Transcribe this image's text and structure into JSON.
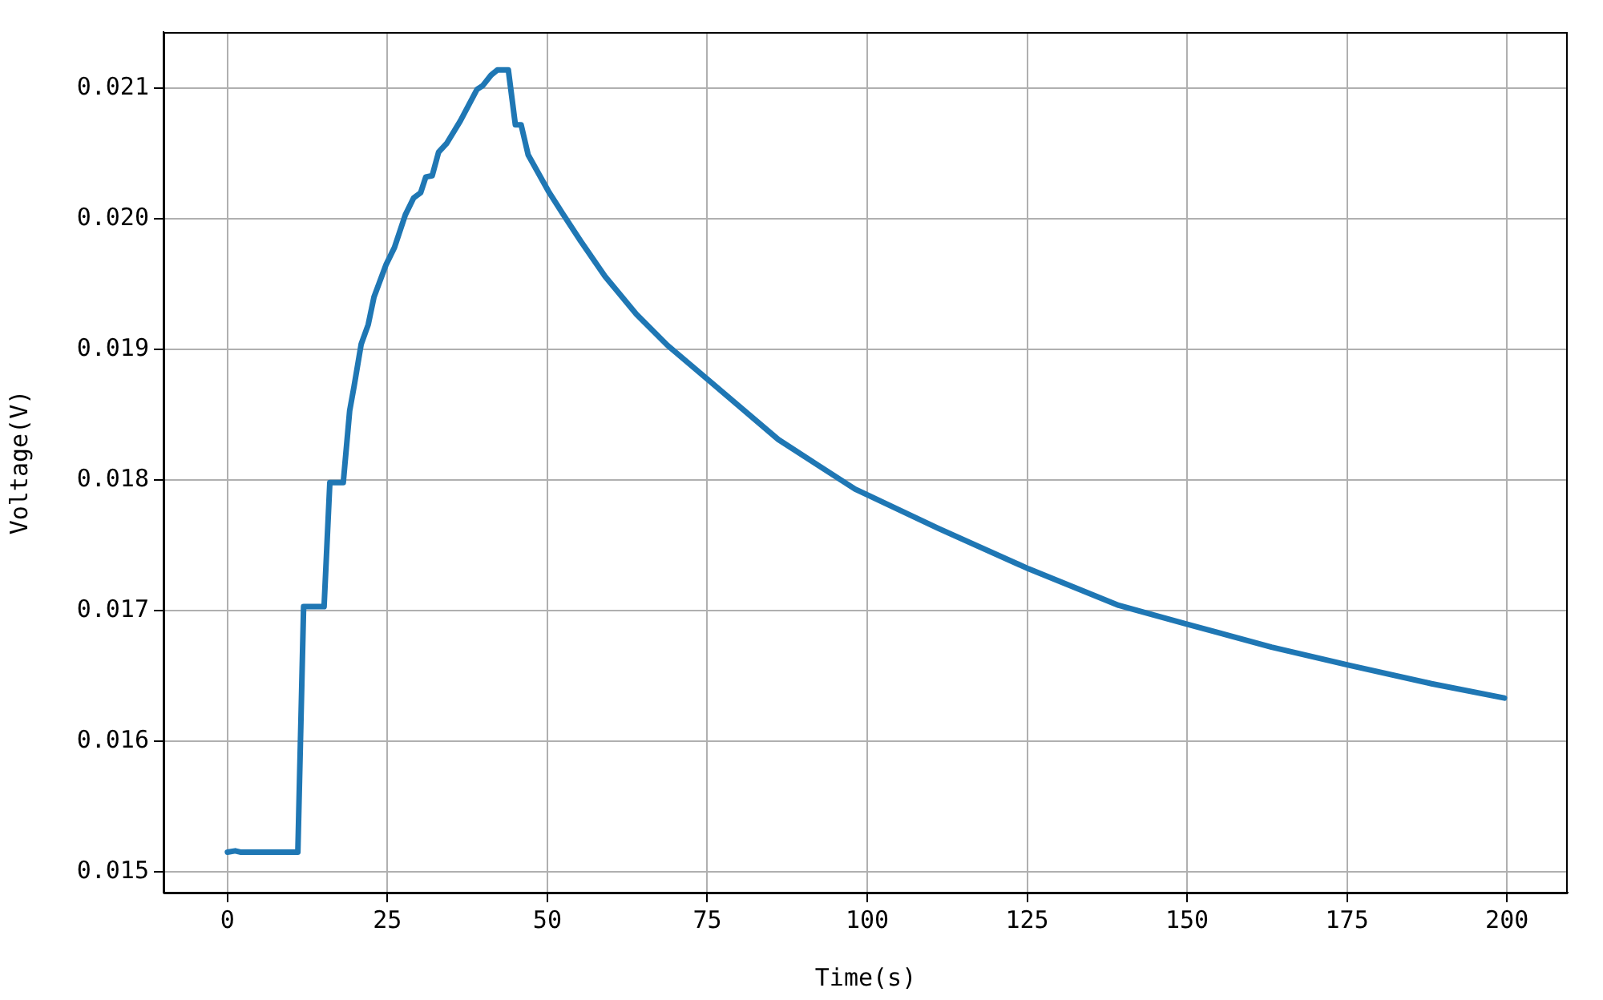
{
  "chart_data": {
    "type": "line",
    "xlabel": "Time(s)",
    "ylabel": "Voltage(V)",
    "x": [
      0,
      1.2,
      2,
      11,
      11.9,
      15.1,
      16,
      18.1,
      19.1,
      19.8,
      20.9,
      22,
      22.9,
      24.8,
      26.1,
      27.8,
      29.1,
      30.2,
      31,
      32,
      33,
      34.3,
      36.4,
      39,
      39.9,
      41.2,
      42.2,
      43.9,
      45,
      45.9,
      47,
      50.3,
      52.4,
      55.2,
      59,
      63.9,
      68.8,
      75.3,
      86.1,
      98.1,
      100.3,
      111.1,
      125.2,
      139.3,
      150.4,
      163.2,
      175.4,
      188.2,
      199.6
    ],
    "series": [
      {
        "color": "#1f77b4",
        "values": [
          0.01515,
          0.01516,
          0.01515,
          0.01515,
          0.01703,
          0.01703,
          0.01798,
          0.01798,
          0.01853,
          0.01872,
          0.01904,
          0.01919,
          0.0194,
          0.01965,
          0.01978,
          0.02003,
          0.02016,
          0.0202,
          0.02032,
          0.02033,
          0.02051,
          0.02058,
          0.02075,
          0.02099,
          0.02102,
          0.0211,
          0.02114,
          0.02114,
          0.02072,
          0.02072,
          0.02049,
          0.0202,
          0.02004,
          0.01983,
          0.01956,
          0.01927,
          0.01903,
          0.01876,
          0.01831,
          0.01793,
          0.01788,
          0.01763,
          0.01732,
          0.01704,
          0.01689,
          0.01672,
          0.01658,
          0.01644,
          0.01633
        ]
      }
    ],
    "xlim": [
      -10,
      209.5
    ],
    "ylim": [
      0.01484,
      0.02143
    ],
    "xticks": [
      0,
      25,
      50,
      75,
      100,
      125,
      150,
      175,
      200
    ],
    "yticks": [
      0.015,
      0.016,
      0.017,
      0.018,
      0.019,
      {
        "value": 0.02,
        "label": "0.020"
      },
      0.021
    ],
    "grid": true,
    "legend": false,
    "marker": "none",
    "line_style": "solid"
  }
}
